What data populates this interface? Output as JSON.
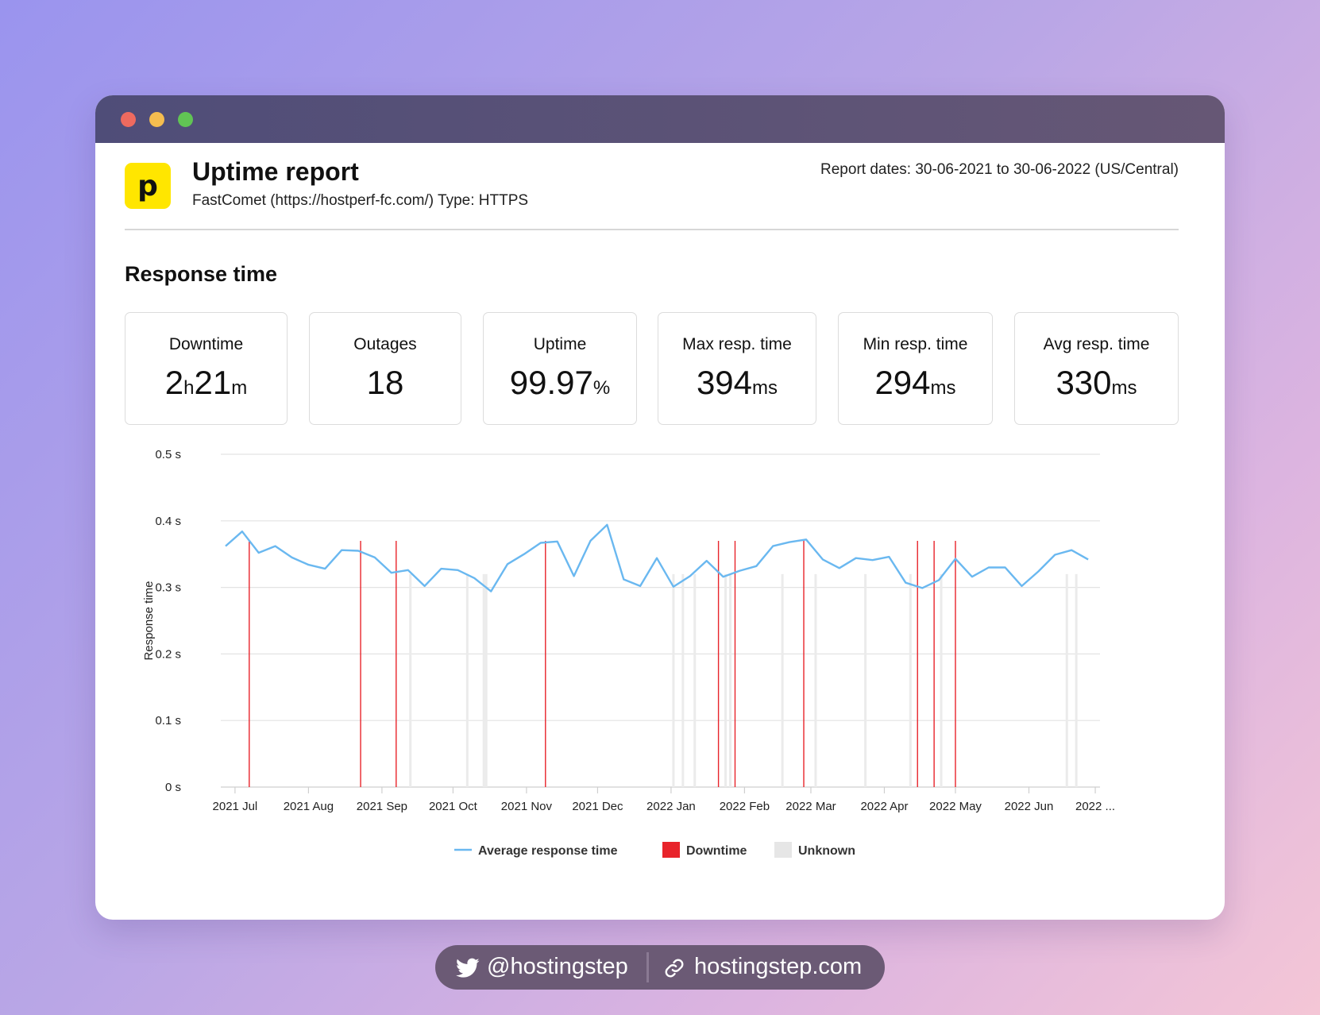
{
  "window": {
    "title": "Uptime report",
    "subtitle": "FastComet (https://hostperf-fc.com/) Type: HTTPS",
    "report_dates": "Report dates: 30-06-2021 to 30-06-2022 (US/Central)",
    "logo_letter": "p",
    "section_title": "Response time"
  },
  "stats": [
    {
      "label": "Downtime",
      "parts": [
        {
          "v": "2",
          "u": "h"
        },
        {
          "v": "21",
          "u": "m"
        }
      ]
    },
    {
      "label": "Outages",
      "parts": [
        {
          "v": "18",
          "u": ""
        }
      ]
    },
    {
      "label": "Uptime",
      "parts": [
        {
          "v": "99.97",
          "u": "%"
        }
      ]
    },
    {
      "label": "Max resp. time",
      "parts": [
        {
          "v": "394",
          "u": "ms"
        }
      ]
    },
    {
      "label": "Min resp. time",
      "parts": [
        {
          "v": "294",
          "u": "ms"
        }
      ]
    },
    {
      "label": "Avg resp. time",
      "parts": [
        {
          "v": "330",
          "u": "ms"
        }
      ]
    }
  ],
  "chart_data": {
    "type": "line",
    "ylabel": "Response time",
    "ylim": [
      0,
      0.5
    ],
    "yticks": [
      "0 s",
      "0.1 s",
      "0.2 s",
      "0.3 s",
      "0.4 s",
      "0.5 s"
    ],
    "ytick_values": [
      0,
      0.1,
      0.2,
      0.3,
      0.4,
      0.5
    ],
    "xticks": [
      "2021 Jul",
      "2021 Aug",
      "2021 Sep",
      "2021 Oct",
      "2021 Nov",
      "2021 Dec",
      "2022 Jan",
      "2022 Feb",
      "2022 Mar",
      "2022 Apr",
      "2022 May",
      "2022 Jun",
      "2022 ..."
    ],
    "xtick_dates": [
      "2021-07-01",
      "2021-08-01",
      "2021-09-01",
      "2021-10-01",
      "2021-11-01",
      "2021-12-01",
      "2022-01-01",
      "2022-02-01",
      "2022-03-01",
      "2022-04-01",
      "2022-05-01",
      "2022-06-01",
      "2022-06-29"
    ],
    "xlim": [
      "2021-06-25",
      "2022-07-01"
    ],
    "grid": true,
    "legend": [
      {
        "label": "Average response time",
        "color": "#6ab8f0"
      },
      {
        "label": "Downtime",
        "color": "#e8242b"
      },
      {
        "label": "Unknown",
        "color": "#e6e6e6"
      }
    ],
    "series": [
      {
        "name": "Average response time",
        "color": "#6ab8f0",
        "x": [
          "2021-06-27",
          "2021-07-04",
          "2021-07-11",
          "2021-07-18",
          "2021-07-25",
          "2021-08-01",
          "2021-08-08",
          "2021-08-15",
          "2021-08-22",
          "2021-08-29",
          "2021-09-05",
          "2021-09-12",
          "2021-09-19",
          "2021-09-26",
          "2021-10-03",
          "2021-10-10",
          "2021-10-17",
          "2021-10-24",
          "2021-10-31",
          "2021-11-07",
          "2021-11-14",
          "2021-11-21",
          "2021-11-28",
          "2021-12-05",
          "2021-12-12",
          "2021-12-19",
          "2021-12-26",
          "2022-01-02",
          "2022-01-09",
          "2022-01-16",
          "2022-01-23",
          "2022-01-30",
          "2022-02-06",
          "2022-02-13",
          "2022-02-20",
          "2022-02-27",
          "2022-03-06",
          "2022-03-13",
          "2022-03-20",
          "2022-03-27",
          "2022-04-03",
          "2022-04-10",
          "2022-04-17",
          "2022-04-24",
          "2022-05-01",
          "2022-05-08",
          "2022-05-15",
          "2022-05-22",
          "2022-05-29",
          "2022-06-05",
          "2022-06-12",
          "2022-06-19",
          "2022-06-26"
        ],
        "values": [
          0.362,
          0.384,
          0.352,
          0.362,
          0.345,
          0.334,
          0.328,
          0.356,
          0.355,
          0.345,
          0.322,
          0.326,
          0.302,
          0.328,
          0.326,
          0.314,
          0.294,
          0.335,
          0.35,
          0.367,
          0.369,
          0.317,
          0.37,
          0.394,
          0.312,
          0.302,
          0.344,
          0.301,
          0.317,
          0.34,
          0.316,
          0.325,
          0.332,
          0.362,
          0.368,
          0.372,
          0.342,
          0.329,
          0.344,
          0.341,
          0.346,
          0.307,
          0.299,
          0.311,
          0.343,
          0.316,
          0.33,
          0.33,
          0.302,
          0.324,
          0.349,
          0.356,
          0.342
        ]
      }
    ],
    "downtime_dates": [
      "2021-07-07",
      "2021-08-23",
      "2021-09-07",
      "2021-11-09",
      "2022-01-21",
      "2022-01-28",
      "2022-02-26",
      "2022-04-15",
      "2022-04-22",
      "2022-05-01"
    ],
    "unknown_dates": [
      "2021-09-13",
      "2021-10-07",
      "2021-10-14",
      "2021-10-15",
      "2022-01-02",
      "2022-01-06",
      "2022-01-11",
      "2022-01-24",
      "2022-01-26",
      "2022-02-17",
      "2022-03-03",
      "2022-03-24",
      "2022-04-12",
      "2022-04-25",
      "2022-06-17",
      "2022-06-21"
    ]
  },
  "footer": {
    "twitter_handle": "@hostingstep",
    "website": "hostingstep.com"
  }
}
